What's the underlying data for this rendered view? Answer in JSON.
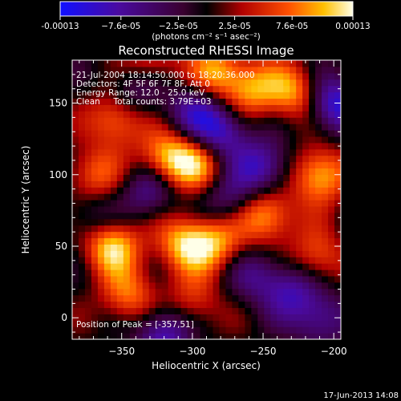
{
  "chart_data": {
    "type": "heatmap",
    "title": "Reconstructed RHESSI Image",
    "xlabel": "Heliocentric X (arcsec)",
    "ylabel": "Heliocentric Y (arcsec)",
    "xlim": [
      -385,
      -195
    ],
    "ylim": [
      -15,
      180
    ],
    "xticks": [
      -350,
      -300,
      -250,
      -200
    ],
    "yticks": [
      0,
      50,
      100,
      150
    ],
    "colorbar": {
      "min": -0.00013,
      "max": 0.00013,
      "tick_values": [
        -0.00013,
        -7.6e-05,
        -2.5e-05,
        2.5e-05,
        7.6e-05,
        0.00013
      ],
      "tick_labels": [
        "-0.00013",
        "−7.6e-05",
        "−2.5e-05",
        "2.5e-05",
        "7.6e-05",
        "0.00013"
      ],
      "unit_text": "(photons cm⁻² s⁻¹ asec⁻²)"
    },
    "info_lines": [
      "21-Jul-2004 18:14:50.000 to 18:20:36.000",
      "Detectors: 4F 5F 6F 7F 8F, Att 0",
      "Energy Range: 12.0 - 25.0 keV",
      "Clean     Total counts: 3.79E+03"
    ],
    "peak_label": "Position of Peak = [-357,51]",
    "peak": [
      -357,
      51
    ],
    "blobs": [
      [
        -357,
        51,
        1.0
      ],
      [
        -353,
        140,
        0.75
      ],
      [
        -318,
        111,
        0.9
      ],
      [
        -296,
        108,
        0.7
      ],
      [
        -305,
        52,
        0.85
      ],
      [
        -283,
        53,
        0.7
      ],
      [
        -248,
        72,
        0.85
      ],
      [
        -210,
        100,
        0.9
      ],
      [
        -228,
        158,
        0.75
      ],
      [
        -283,
        172,
        0.75
      ],
      [
        -258,
        160,
        0.7
      ],
      [
        -330,
        178,
        0.6
      ],
      [
        -345,
        15,
        0.65
      ],
      [
        -300,
        10,
        0.5
      ],
      [
        -212,
        42,
        0.6
      ],
      [
        -370,
        100,
        0.6
      ],
      [
        -340,
        160,
        -0.6
      ],
      [
        -280,
        130,
        -0.8
      ],
      [
        -250,
        105,
        -0.75
      ],
      [
        -200,
        150,
        -0.9
      ],
      [
        -330,
        90,
        -0.6
      ],
      [
        -275,
        82,
        -0.5
      ],
      [
        -230,
        20,
        -0.6
      ],
      [
        -320,
        -10,
        -0.8
      ],
      [
        -210,
        0,
        -0.6
      ],
      [
        -370,
        70,
        -0.4
      ],
      [
        -255,
        30,
        -0.45
      ],
      [
        -300,
        145,
        -0.55
      ]
    ]
  },
  "footer_date": "17-Jun-2013 14:08"
}
